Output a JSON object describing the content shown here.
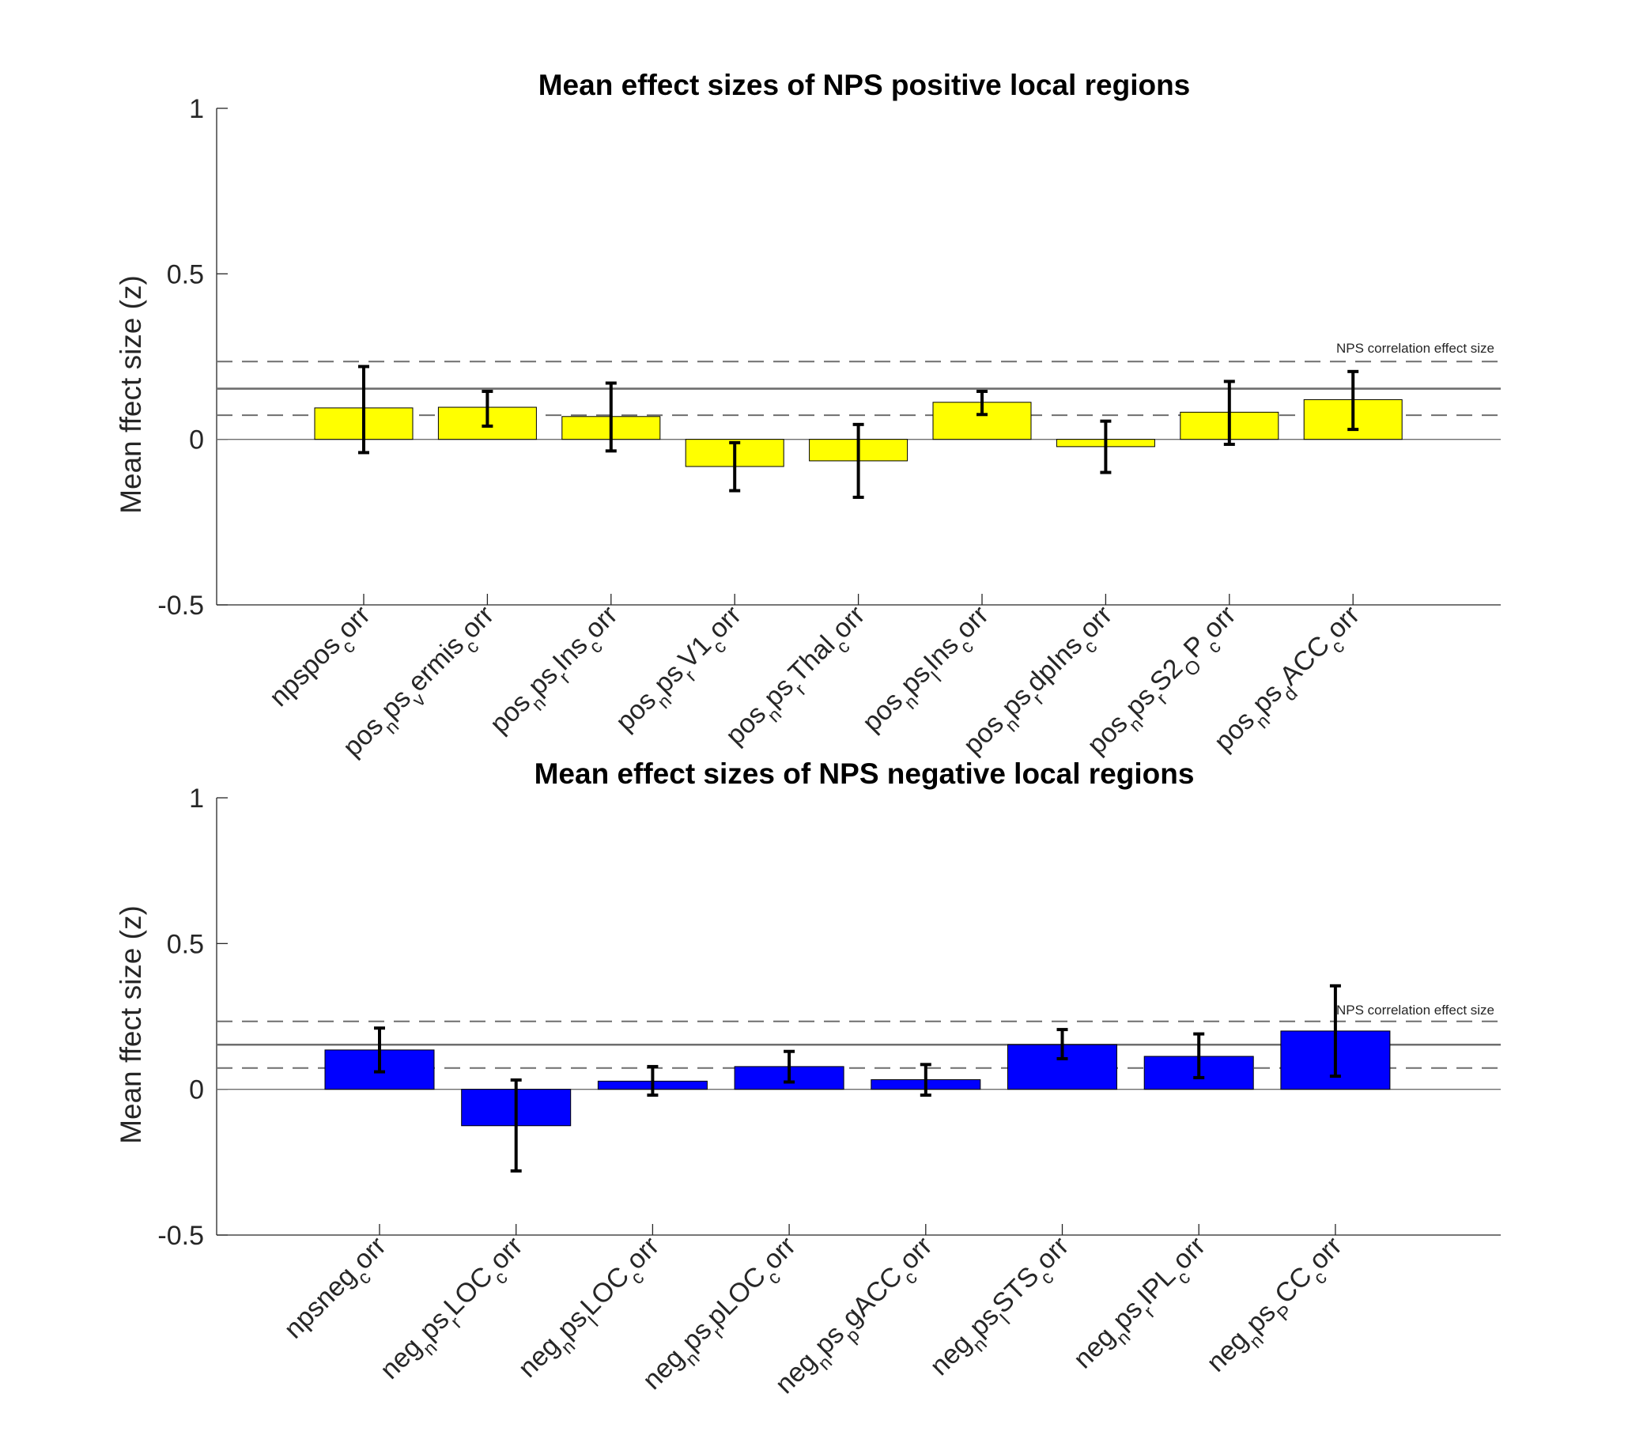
{
  "chart_data": [
    {
      "type": "bar",
      "title": "Mean effect sizes of NPS positive local regions",
      "ylabel": "Mean ffect size (z)",
      "xlabel": "",
      "ylim": [
        -0.5,
        1
      ],
      "yticks": [
        "-0.5",
        "0",
        "0.5",
        "1"
      ],
      "ytick_values": [
        -0.5,
        0,
        0.5,
        1
      ],
      "bar_color": "#ffff00",
      "categories": [
        "npspos_c orr",
        "pos_n ps_v ermis_c orr",
        "pos_n ps_r Ins_c orr",
        "pos_n ps_r V1_c orr",
        "pos_n ps_r Thal_c orr",
        "pos_n ps_l Ins_c orr",
        "pos_n ps_r dpIns_c orr",
        "pos_n ps_r S2_O P_c orr",
        "pos_n ps_d ACC_c orr"
      ],
      "tick_labels": [
        [
          {
            "t": "npspos"
          },
          {
            "t": "c",
            "sub": true
          },
          {
            "t": "orr"
          }
        ],
        [
          {
            "t": "pos"
          },
          {
            "t": "n",
            "sub": true
          },
          {
            "t": "ps"
          },
          {
            "t": "v",
            "sub": true
          },
          {
            "t": "ermis"
          },
          {
            "t": "c",
            "sub": true
          },
          {
            "t": "orr"
          }
        ],
        [
          {
            "t": "pos"
          },
          {
            "t": "n",
            "sub": true
          },
          {
            "t": "ps"
          },
          {
            "t": "r",
            "sub": true
          },
          {
            "t": "Ins"
          },
          {
            "t": "c",
            "sub": true
          },
          {
            "t": "orr"
          }
        ],
        [
          {
            "t": "pos"
          },
          {
            "t": "n",
            "sub": true
          },
          {
            "t": "ps"
          },
          {
            "t": "r",
            "sub": true
          },
          {
            "t": "V1"
          },
          {
            "t": "c",
            "sub": true
          },
          {
            "t": "orr"
          }
        ],
        [
          {
            "t": "pos"
          },
          {
            "t": "n",
            "sub": true
          },
          {
            "t": "ps"
          },
          {
            "t": "r",
            "sub": true
          },
          {
            "t": "Thal"
          },
          {
            "t": "c",
            "sub": true
          },
          {
            "t": "orr"
          }
        ],
        [
          {
            "t": "pos"
          },
          {
            "t": "n",
            "sub": true
          },
          {
            "t": "ps"
          },
          {
            "t": "l",
            "sub": true
          },
          {
            "t": "Ins"
          },
          {
            "t": "c",
            "sub": true
          },
          {
            "t": "orr"
          }
        ],
        [
          {
            "t": "pos"
          },
          {
            "t": "n",
            "sub": true
          },
          {
            "t": "ps"
          },
          {
            "t": "r",
            "sub": true
          },
          {
            "t": "dpIns"
          },
          {
            "t": "c",
            "sub": true
          },
          {
            "t": "orr"
          }
        ],
        [
          {
            "t": "pos"
          },
          {
            "t": "n",
            "sub": true
          },
          {
            "t": "ps"
          },
          {
            "t": "r",
            "sub": true
          },
          {
            "t": "S2"
          },
          {
            "t": "O",
            "sub": true
          },
          {
            "t": "P"
          },
          {
            "t": "c",
            "sub": true
          },
          {
            "t": "orr"
          }
        ],
        [
          {
            "t": "pos"
          },
          {
            "t": "n",
            "sub": true
          },
          {
            "t": "ps"
          },
          {
            "t": "d",
            "sub": true
          },
          {
            "t": "ACC"
          },
          {
            "t": "c",
            "sub": true
          },
          {
            "t": "orr"
          }
        ]
      ],
      "values": [
        0.095,
        0.097,
        0.069,
        -0.082,
        -0.065,
        0.112,
        -0.022,
        0.082,
        0.12
      ],
      "error_low": [
        -0.04,
        0.04,
        -0.035,
        -0.155,
        -0.175,
        0.075,
        -0.1,
        -0.015,
        0.03
      ],
      "error_high": [
        0.22,
        0.145,
        0.17,
        -0.01,
        0.045,
        0.145,
        0.055,
        0.175,
        0.205
      ],
      "reference_lines": {
        "mean": 0.153,
        "upper": 0.235,
        "lower": 0.073
      },
      "annotation": "NPS correlation effect size"
    },
    {
      "type": "bar",
      "title": "Mean effect sizes of NPS negative local regions",
      "ylabel": "Mean ffect size (z)",
      "xlabel": "",
      "ylim": [
        -0.5,
        1
      ],
      "yticks": [
        "-0.5",
        "0",
        "0.5",
        "1"
      ],
      "ytick_values": [
        -0.5,
        0,
        0.5,
        1
      ],
      "bar_color": "#0000ff",
      "categories": [
        "npsneg_c orr",
        "neg_n ps_r LOC_c orr",
        "neg_n ps_l LOC_c orr",
        "neg_n ps_r pLOC_c orr",
        "neg_n ps_p gACC_c orr",
        "neg_n ps_l STS_c orr",
        "neg_n ps_r IPL_c orr",
        "neg_n ps_P CC_c orr"
      ],
      "tick_labels": [
        [
          {
            "t": "npsneg"
          },
          {
            "t": "c",
            "sub": true
          },
          {
            "t": "orr"
          }
        ],
        [
          {
            "t": "neg"
          },
          {
            "t": "n",
            "sub": true
          },
          {
            "t": "ps"
          },
          {
            "t": "r",
            "sub": true
          },
          {
            "t": "LOC"
          },
          {
            "t": "c",
            "sub": true
          },
          {
            "t": "orr"
          }
        ],
        [
          {
            "t": "neg"
          },
          {
            "t": "n",
            "sub": true
          },
          {
            "t": "ps"
          },
          {
            "t": "l",
            "sub": true
          },
          {
            "t": "LOC"
          },
          {
            "t": "c",
            "sub": true
          },
          {
            "t": "orr"
          }
        ],
        [
          {
            "t": "neg"
          },
          {
            "t": "n",
            "sub": true
          },
          {
            "t": "ps"
          },
          {
            "t": "r",
            "sub": true
          },
          {
            "t": "pLOC"
          },
          {
            "t": "c",
            "sub": true
          },
          {
            "t": "orr"
          }
        ],
        [
          {
            "t": "neg"
          },
          {
            "t": "n",
            "sub": true
          },
          {
            "t": "ps"
          },
          {
            "t": "p",
            "sub": true
          },
          {
            "t": "gACC"
          },
          {
            "t": "c",
            "sub": true
          },
          {
            "t": "orr"
          }
        ],
        [
          {
            "t": "neg"
          },
          {
            "t": "n",
            "sub": true
          },
          {
            "t": "ps"
          },
          {
            "t": "l",
            "sub": true
          },
          {
            "t": "STS"
          },
          {
            "t": "c",
            "sub": true
          },
          {
            "t": "orr"
          }
        ],
        [
          {
            "t": "neg"
          },
          {
            "t": "n",
            "sub": true
          },
          {
            "t": "ps"
          },
          {
            "t": "r",
            "sub": true
          },
          {
            "t": "IPL"
          },
          {
            "t": "c",
            "sub": true
          },
          {
            "t": "orr"
          }
        ],
        [
          {
            "t": "neg"
          },
          {
            "t": "n",
            "sub": true
          },
          {
            "t": "ps"
          },
          {
            "t": "P",
            "sub": true
          },
          {
            "t": "CC"
          },
          {
            "t": "c",
            "sub": true
          },
          {
            "t": "orr"
          }
        ]
      ],
      "values": [
        0.135,
        -0.125,
        0.028,
        0.078,
        0.033,
        0.153,
        0.113,
        0.2
      ],
      "error_low": [
        0.06,
        -0.28,
        -0.02,
        0.025,
        -0.02,
        0.105,
        0.04,
        0.045
      ],
      "error_high": [
        0.21,
        0.032,
        0.078,
        0.13,
        0.085,
        0.205,
        0.19,
        0.355
      ],
      "reference_lines": {
        "mean": 0.153,
        "upper": 0.233,
        "lower": 0.073
      },
      "annotation": "NPS correlation effect size"
    }
  ]
}
